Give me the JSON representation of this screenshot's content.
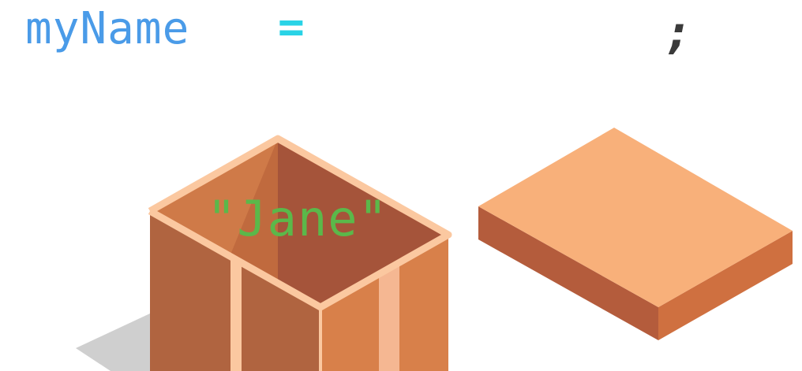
{
  "code": {
    "variable_name": "myName",
    "operator": "=",
    "terminator": ";"
  },
  "box": {
    "value": "\"Jane\""
  },
  "colors": {
    "variable": "#4a9be8",
    "operator": "#29d3e6",
    "terminator": "#3a3a3a",
    "string_value": "#5bb84a",
    "box_left_wall": "#b06440",
    "box_right_wall": "#d8804a",
    "box_inside_back": "#a5543a",
    "box_inside_left": "#cf7a48",
    "box_rim": "#fbc8a0",
    "lid_top": "#f8b07a",
    "lid_left_side": "#b45c3c",
    "lid_right_side": "#cf7040",
    "shadow": "#cfcfcf"
  }
}
